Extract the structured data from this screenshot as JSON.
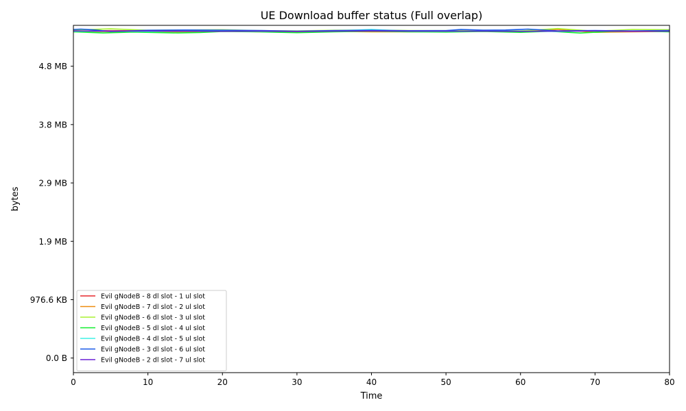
{
  "chart_data": {
    "type": "line",
    "title": "UE Download buffer status (Full overlap)",
    "xlabel": "Time",
    "ylabel": "bytes",
    "xlim": [
      0,
      80
    ],
    "ylim": [
      -250000,
      5700000
    ],
    "xticks": [
      0,
      10,
      20,
      30,
      40,
      50,
      60,
      70,
      80
    ],
    "xtick_labels": [
      "0",
      "10",
      "20",
      "30",
      "40",
      "50",
      "60",
      "70",
      "80"
    ],
    "yticks": [
      0,
      1000000,
      2000000,
      3000000,
      4000000,
      5000000
    ],
    "ytick_labels": [
      "0.0 B",
      "976.6 KB",
      "1.9 MB",
      "2.9 MB",
      "3.8 MB",
      "4.8 MB"
    ],
    "grid": false,
    "legend_position": "lower-left",
    "series": [
      {
        "name": "Evil gNodeB - 8 dl slot - 1 ul slot",
        "color": "#e6262b",
        "x": [
          0,
          5,
          10,
          15,
          20,
          25,
          30,
          35,
          40,
          45,
          50,
          55,
          60,
          65,
          70,
          75,
          80
        ],
        "values": [
          5600000,
          5610000,
          5605000,
          5600000,
          5608000,
          5600000,
          5602000,
          5606000,
          5610000,
          5600000,
          5604000,
          5600000,
          5598000,
          5602000,
          5600000,
          5603000,
          5600000
        ]
      },
      {
        "name": "Evil gNodeB - 7 dl slot - 2 ul slot",
        "color": "#ee8a0c",
        "x": [
          0,
          5,
          10,
          15,
          20,
          25,
          30,
          35,
          40,
          45,
          50,
          55,
          60,
          65,
          70,
          75,
          80
        ],
        "values": [
          5590000,
          5595000,
          5585000,
          5590000,
          5600000,
          5588000,
          5592000,
          5595000,
          5590000,
          5588000,
          5595000,
          5600000,
          5590000,
          5630000,
          5580000,
          5590000,
          5595000
        ]
      },
      {
        "name": "Evil gNodeB - 6 dl slot - 3 ul slot",
        "color": "#a9f230",
        "x": [
          0,
          5,
          10,
          15,
          20,
          25,
          30,
          35,
          40,
          45,
          50,
          55,
          60,
          65,
          70,
          75,
          80
        ],
        "values": [
          5620000,
          5640000,
          5615000,
          5620000,
          5625000,
          5610000,
          5605000,
          5615000,
          5620000,
          5612000,
          5610000,
          5615000,
          5605000,
          5645000,
          5600000,
          5630000,
          5625000
        ]
      },
      {
        "name": "Evil gNodeB - 5 dl slot - 4 ul slot",
        "color": "#11ee2f",
        "x": [
          0,
          4,
          8,
          14,
          17,
          20,
          25,
          30,
          35,
          40,
          45,
          50,
          55,
          60,
          64,
          68,
          72,
          76,
          80
        ],
        "values": [
          5590000,
          5570000,
          5585000,
          5570000,
          5578000,
          5595000,
          5588000,
          5575000,
          5590000,
          5600000,
          5590000,
          5585000,
          5595000,
          5580000,
          5598000,
          5568000,
          5595000,
          5600000,
          5590000
        ]
      },
      {
        "name": "Evil gNodeB - 4 dl slot - 5 ul slot",
        "color": "#3ef0e6",
        "x": [
          0,
          5,
          10,
          15,
          20,
          25,
          30,
          35,
          40,
          45,
          50,
          55,
          60,
          65,
          70,
          75,
          80
        ],
        "values": [
          5598000,
          5602000,
          5595000,
          5600000,
          5604000,
          5598000,
          5600000,
          5606000,
          5628000,
          5600000,
          5598000,
          5604000,
          5600000,
          5595000,
          5608000,
          5600000,
          5604000
        ]
      },
      {
        "name": "Evil gNodeB - 3 dl slot - 6 ul slot",
        "color": "#1556e8",
        "x": [
          0,
          1,
          3,
          5,
          10,
          15,
          20,
          25,
          30,
          35,
          40,
          45,
          50,
          52,
          55,
          58,
          61,
          65,
          70,
          75,
          80
        ],
        "values": [
          5630000,
          5635000,
          5620000,
          5595000,
          5615000,
          5620000,
          5618000,
          5612000,
          5600000,
          5612000,
          5615000,
          5608000,
          5610000,
          5630000,
          5618000,
          5620000,
          5635000,
          5605000,
          5612000,
          5605000,
          5612000
        ]
      },
      {
        "name": "Evil gNodeB - 2 dl slot - 7 ul slot",
        "color": "#6a1fd6",
        "x": [
          0,
          5,
          10,
          15,
          20,
          25,
          30,
          35,
          40,
          45,
          50,
          55,
          60,
          65,
          70,
          75,
          80
        ],
        "values": [
          5605000,
          5600000,
          5604000,
          5600000,
          5598000,
          5602000,
          5596000,
          5600000,
          5604000,
          5600000,
          5600000,
          5602000,
          5598000,
          5600000,
          5604000,
          5598000,
          5600000
        ]
      }
    ]
  }
}
